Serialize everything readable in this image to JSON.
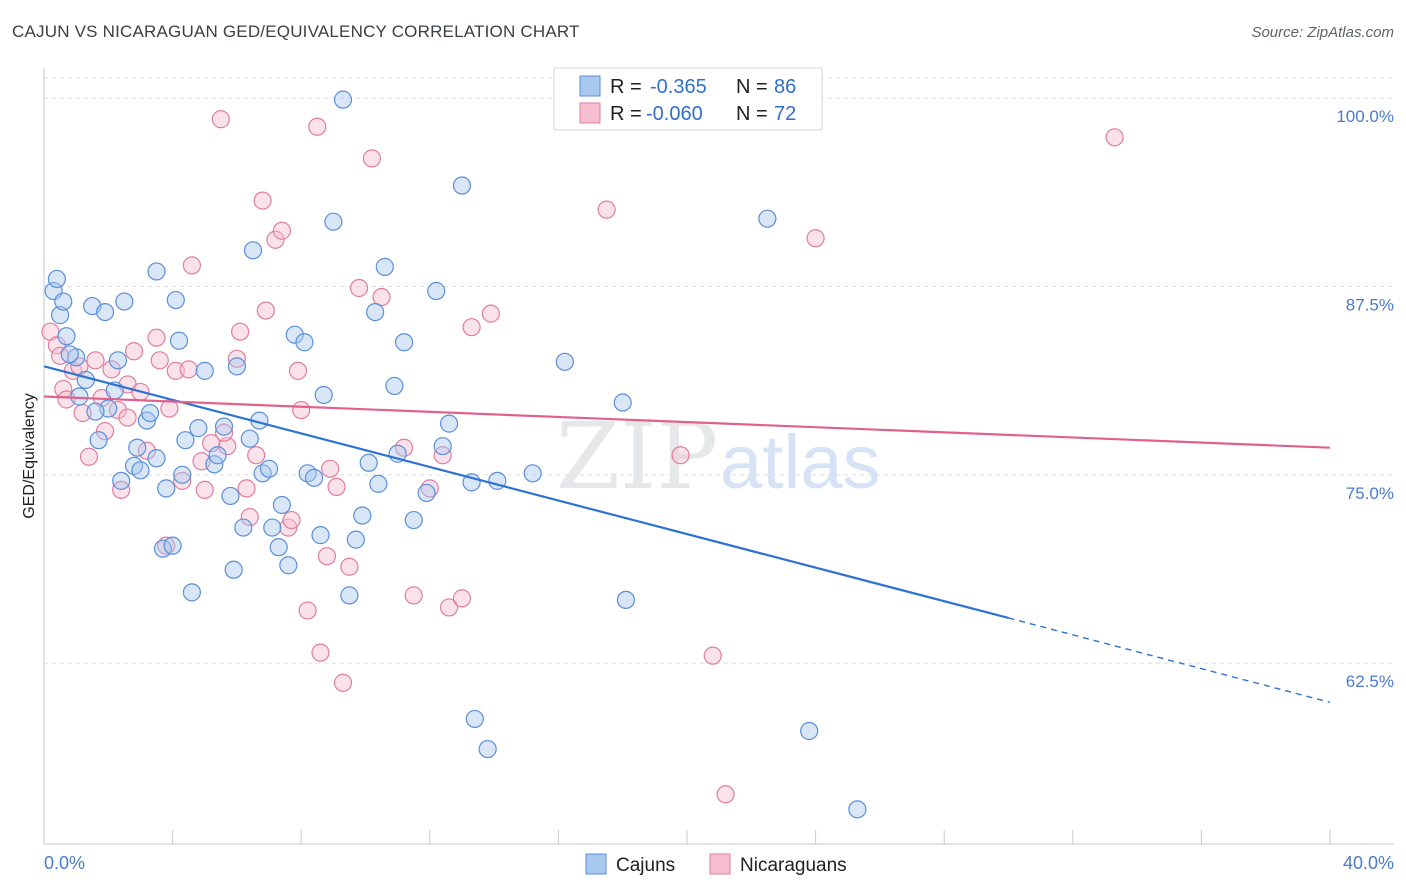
{
  "title": "CAJUN VS NICARAGUAN GED/EQUIVALENCY CORRELATION CHART",
  "source": "Source: ZipAtlas.com",
  "colors": {
    "cajun_fill": "#a9c8f0",
    "cajun_stroke": "#5b8fd8",
    "cajun_line": "#2e72d2",
    "nica_fill": "#f6bfd0",
    "nica_stroke": "#e07ea0",
    "nica_line": "#e0628c",
    "grid": "#dadce0",
    "axis_label": "#4a7bd0"
  },
  "legend": {
    "rows": [
      {
        "r_label": "R = ",
        "r_value": "-0.365",
        "n_label": "N = ",
        "n_value": "86"
      },
      {
        "r_label": "R = ",
        "r_value": "-0.060",
        "n_label": "N = ",
        "n_value": "72"
      }
    ]
  },
  "bottom_legend": [
    "Cajuns",
    "Nicaraguans"
  ],
  "watermark": {
    "zip": "ZIP",
    "atlas": "atlas"
  },
  "chart_data": {
    "type": "scatter",
    "title": "CAJUN VS NICARAGUAN GED/EQUIVALENCY CORRELATION CHART",
    "xlabel": "",
    "ylabel": "GED/Equivalency",
    "xlim": [
      0,
      40
    ],
    "ylim": [
      50.5,
      102.0
    ],
    "x_tick_labels": [
      "0.0%",
      "40.0%"
    ],
    "y_ticks": [
      62.5,
      75.0,
      87.5,
      100.0
    ],
    "y_tick_labels": [
      "62.5%",
      "75.0%",
      "87.5%",
      "100.0%"
    ],
    "grid": true,
    "legend_position": "top-center",
    "series": [
      {
        "name": "Cajuns",
        "r": -0.365,
        "n": 86,
        "trend": {
          "x0": 0.0,
          "y0": 82.2,
          "x1": 30.0,
          "y1": 65.5,
          "dash_to_x": 40.0,
          "dash_to_y": 59.9
        },
        "points": [
          [
            0.3,
            87.2
          ],
          [
            0.5,
            85.6
          ],
          [
            0.7,
            84.2
          ],
          [
            0.6,
            86.5
          ],
          [
            1.0,
            82.8
          ],
          [
            1.1,
            80.2
          ],
          [
            1.5,
            86.2
          ],
          [
            1.9,
            85.8
          ],
          [
            2.5,
            86.5
          ],
          [
            2.3,
            82.6
          ],
          [
            2.2,
            80.6
          ],
          [
            2.0,
            79.4
          ],
          [
            1.7,
            77.3
          ],
          [
            2.8,
            75.6
          ],
          [
            3.0,
            75.3
          ],
          [
            3.2,
            78.6
          ],
          [
            3.5,
            76.1
          ],
          [
            3.8,
            74.1
          ],
          [
            3.7,
            70.1
          ],
          [
            4.1,
            86.6
          ],
          [
            3.5,
            88.5
          ],
          [
            4.2,
            83.9
          ],
          [
            4.4,
            77.3
          ],
          [
            4.6,
            67.2
          ],
          [
            4.8,
            78.1
          ],
          [
            5.0,
            81.9
          ],
          [
            5.3,
            75.7
          ],
          [
            5.6,
            78.2
          ],
          [
            5.9,
            68.7
          ],
          [
            6.2,
            71.5
          ],
          [
            6.5,
            89.9
          ],
          [
            6.7,
            78.6
          ],
          [
            6.8,
            75.1
          ],
          [
            7.1,
            71.5
          ],
          [
            7.3,
            70.2
          ],
          [
            7.4,
            73.0
          ],
          [
            7.8,
            84.3
          ],
          [
            8.1,
            83.8
          ],
          [
            8.2,
            75.1
          ],
          [
            8.4,
            74.8
          ],
          [
            8.7,
            80.3
          ],
          [
            9.0,
            91.8
          ],
          [
            9.3,
            99.9
          ],
          [
            9.7,
            70.7
          ],
          [
            9.9,
            72.3
          ],
          [
            10.1,
            75.8
          ],
          [
            10.3,
            85.8
          ],
          [
            10.6,
            88.8
          ],
          [
            10.9,
            80.9
          ],
          [
            11.2,
            83.8
          ],
          [
            11.5,
            72.0
          ],
          [
            11.9,
            73.8
          ],
          [
            12.2,
            87.2
          ],
          [
            12.6,
            78.4
          ],
          [
            13.0,
            94.2
          ],
          [
            13.3,
            74.5
          ],
          [
            13.4,
            58.8
          ],
          [
            13.8,
            56.8
          ],
          [
            14.1,
            74.6
          ],
          [
            15.2,
            75.1
          ],
          [
            16.2,
            82.5
          ],
          [
            18.0,
            79.8
          ],
          [
            18.1,
            66.7
          ],
          [
            22.5,
            92.0
          ],
          [
            23.8,
            58.0
          ],
          [
            25.3,
            52.8
          ],
          [
            0.8,
            83.0
          ],
          [
            1.3,
            81.3
          ],
          [
            1.6,
            79.2
          ],
          [
            2.4,
            74.6
          ],
          [
            3.3,
            79.1
          ],
          [
            4.0,
            70.3
          ],
          [
            5.4,
            76.3
          ],
          [
            6.0,
            82.2
          ],
          [
            7.0,
            75.4
          ],
          [
            8.6,
            71.0
          ],
          [
            9.5,
            67.0
          ],
          [
            2.9,
            76.8
          ],
          [
            4.3,
            75.0
          ],
          [
            5.8,
            73.6
          ],
          [
            6.4,
            77.4
          ],
          [
            7.6,
            69.0
          ],
          [
            10.4,
            74.4
          ],
          [
            12.4,
            76.9
          ],
          [
            0.4,
            88.0
          ],
          [
            11.0,
            76.4
          ]
        ]
      },
      {
        "name": "Nicaraguans",
        "r": -0.06,
        "n": 72,
        "trend": {
          "x0": 0.0,
          "y0": 80.2,
          "x1": 40.0,
          "y1": 76.8
        },
        "points": [
          [
            0.2,
            84.5
          ],
          [
            0.4,
            83.6
          ],
          [
            0.6,
            80.7
          ],
          [
            0.9,
            81.9
          ],
          [
            1.2,
            79.1
          ],
          [
            1.4,
            76.2
          ],
          [
            1.6,
            82.6
          ],
          [
            1.8,
            80.1
          ],
          [
            2.1,
            82.0
          ],
          [
            2.3,
            79.3
          ],
          [
            2.6,
            81.0
          ],
          [
            2.8,
            83.2
          ],
          [
            3.0,
            80.5
          ],
          [
            3.2,
            76.6
          ],
          [
            3.5,
            84.1
          ],
          [
            3.6,
            82.6
          ],
          [
            3.8,
            70.3
          ],
          [
            4.1,
            81.9
          ],
          [
            4.3,
            74.6
          ],
          [
            4.6,
            88.9
          ],
          [
            4.9,
            75.9
          ],
          [
            5.2,
            77.1
          ],
          [
            5.5,
            98.6
          ],
          [
            5.7,
            76.9
          ],
          [
            6.0,
            82.7
          ],
          [
            6.1,
            84.5
          ],
          [
            6.3,
            74.1
          ],
          [
            6.6,
            76.3
          ],
          [
            6.9,
            85.9
          ],
          [
            7.2,
            90.6
          ],
          [
            7.4,
            91.2
          ],
          [
            7.6,
            71.5
          ],
          [
            7.9,
            81.9
          ],
          [
            8.2,
            66.0
          ],
          [
            8.5,
            98.1
          ],
          [
            8.6,
            63.2
          ],
          [
            8.8,
            69.6
          ],
          [
            9.3,
            61.2
          ],
          [
            9.5,
            68.9
          ],
          [
            9.8,
            87.4
          ],
          [
            10.2,
            96.0
          ],
          [
            10.5,
            86.8
          ],
          [
            11.2,
            76.8
          ],
          [
            11.5,
            67.0
          ],
          [
            12.0,
            74.1
          ],
          [
            12.4,
            76.3
          ],
          [
            12.6,
            66.2
          ],
          [
            13.0,
            66.8
          ],
          [
            13.3,
            84.8
          ],
          [
            13.9,
            85.7
          ],
          [
            17.5,
            92.6
          ],
          [
            19.8,
            76.3
          ],
          [
            20.8,
            63.0
          ],
          [
            21.2,
            53.8
          ],
          [
            24.0,
            90.7
          ],
          [
            33.3,
            97.4
          ],
          [
            0.5,
            82.9
          ],
          [
            0.7,
            80.0
          ],
          [
            1.1,
            82.2
          ],
          [
            2.4,
            74.0
          ],
          [
            3.9,
            79.4
          ],
          [
            4.5,
            82.0
          ],
          [
            5.0,
            74.0
          ],
          [
            6.4,
            72.2
          ],
          [
            7.7,
            72.0
          ],
          [
            8.0,
            79.3
          ],
          [
            8.9,
            75.4
          ],
          [
            9.1,
            74.2
          ],
          [
            6.8,
            93.2
          ],
          [
            2.6,
            78.8
          ],
          [
            1.9,
            77.9
          ],
          [
            5.6,
            77.8
          ]
        ]
      }
    ]
  }
}
